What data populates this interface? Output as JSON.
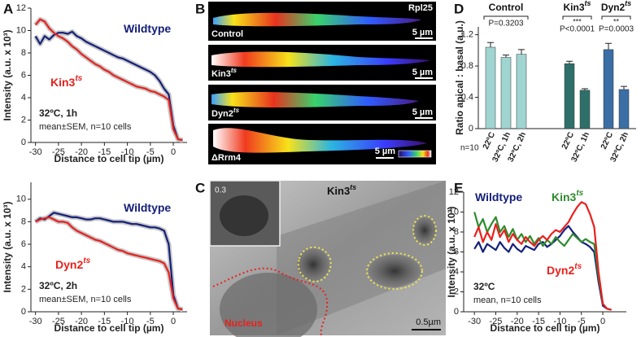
{
  "panel_letters": [
    "A",
    "B",
    "C",
    "D",
    "E"
  ],
  "micrograph_B": {
    "title": "Rpl25",
    "images": [
      {
        "label": "Control",
        "scale_bar": "5 µm"
      },
      {
        "label": "Kin3",
        "label_sup": "ts",
        "scale_bar": "5 µm"
      },
      {
        "label": "Dyn2",
        "label_sup": "ts",
        "scale_bar": "5 µm"
      },
      {
        "label": "ΔRrm4",
        "scale_bar": "5 µm"
      }
    ]
  },
  "micrograph_C": {
    "title": "Kin3",
    "title_sup": "ts",
    "inset_label": "0.3",
    "region_label": "Nucleus",
    "scale_bar": "0.5µm"
  },
  "chart_data": [
    {
      "type": "line",
      "x_label": "Distance to cell tip (µm)",
      "y_label": "Intensity (a.u. x 10³)",
      "annotations": [
        "32ºC, 1h",
        "mean±SEM, n=10 cells"
      ],
      "sem_band": true,
      "xlim": [
        -31,
        3
      ],
      "ylim": [
        0,
        12
      ],
      "xticks": [
        -30,
        -25,
        -20,
        -15,
        -10,
        -5,
        0
      ],
      "yticks": [
        0,
        2,
        4,
        6,
        8,
        10,
        12
      ],
      "x": [
        -30,
        -29,
        -28,
        -27,
        -26,
        -25,
        -24,
        -23,
        -22,
        -21,
        -20,
        -19,
        -18,
        -17,
        -16,
        -15,
        -14,
        -13,
        -12,
        -11,
        -10,
        -9,
        -8,
        -7,
        -6,
        -5,
        -4,
        -3,
        -2,
        -1,
        0,
        1,
        2
      ],
      "series": [
        {
          "name": "Wildtype",
          "color": "#14207a",
          "values": [
            9.5,
            8.8,
            9.5,
            9.2,
            9.6,
            9.8,
            9.8,
            9.7,
            9.9,
            9.5,
            9.3,
            9.0,
            8.8,
            8.6,
            8.4,
            8.2,
            8.0,
            7.8,
            7.6,
            7.5,
            7.3,
            7.1,
            6.9,
            6.7,
            6.5,
            6.3,
            6.0,
            5.5,
            4.8,
            4.3,
            1.5,
            0.3,
            0.2
          ]
        },
        {
          "name": "Kin3",
          "name_sup": "ts",
          "color": "#e8211d",
          "values": [
            10.5,
            11.0,
            10.8,
            10.2,
            9.8,
            9.5,
            9.3,
            9.0,
            8.6,
            8.3,
            7.9,
            7.6,
            7.3,
            7.0,
            6.8,
            6.5,
            6.3,
            6.0,
            5.8,
            5.6,
            5.4,
            5.2,
            5.0,
            4.9,
            4.8,
            4.6,
            4.5,
            4.3,
            4.1,
            3.8,
            1.2,
            0.3,
            0.2
          ]
        }
      ]
    },
    {
      "type": "line",
      "x_label": "Distance to cell tip (µm)",
      "y_label": "Intensity (a.u. x 10³)",
      "annotations": [
        "32ºC, 2h",
        "mean±SEM, n=10 cells"
      ],
      "sem_band": true,
      "xlim": [
        -31,
        3
      ],
      "ylim": [
        0,
        11.5
      ],
      "xticks": [
        -30,
        -25,
        -20,
        -15,
        -10,
        -5,
        0
      ],
      "yticks": [
        0,
        2,
        4,
        6,
        8,
        10
      ],
      "x": [
        -30,
        -29,
        -28,
        -27,
        -26,
        -25,
        -24,
        -23,
        -22,
        -21,
        -20,
        -19,
        -18,
        -17,
        -16,
        -15,
        -14,
        -13,
        -12,
        -11,
        -10,
        -9,
        -8,
        -7,
        -6,
        -5,
        -4,
        -3,
        -2,
        -1,
        0,
        1,
        2
      ],
      "series": [
        {
          "name": "Wildtype",
          "color": "#14207a",
          "values": [
            8.0,
            8.3,
            8.2,
            8.5,
            8.8,
            8.7,
            8.6,
            8.5,
            8.4,
            8.4,
            8.3,
            8.2,
            8.2,
            8.3,
            8.3,
            8.2,
            8.1,
            8.0,
            8.0,
            8.0,
            7.9,
            7.8,
            7.8,
            7.7,
            7.6,
            7.5,
            7.5,
            7.4,
            7.2,
            6.0,
            1.5,
            0.3,
            0.2
          ]
        },
        {
          "name": "Dyn2",
          "name_sup": "ts",
          "color": "#e8211d",
          "values": [
            8.0,
            8.2,
            8.3,
            8.4,
            8.2,
            8.0,
            8.0,
            7.9,
            7.5,
            7.2,
            7.0,
            6.8,
            6.6,
            6.4,
            6.3,
            6.1,
            5.9,
            5.7,
            5.5,
            5.4,
            5.2,
            5.1,
            5.0,
            4.9,
            4.8,
            4.7,
            4.6,
            4.5,
            4.3,
            3.5,
            1.2,
            0.3,
            0.2
          ]
        }
      ]
    },
    {
      "type": "grouped-bar",
      "y_label": "Ratio apical : basal (a.u.)",
      "sample_size": "n=10",
      "ylim": [
        0,
        1.3
      ],
      "yticks": [
        0,
        0.4,
        0.8,
        1.2
      ],
      "groups": [
        {
          "name": "Control",
          "color": "#9fd4d1",
          "categories": [
            "22ºC",
            "32ºC, 1h",
            "32ºC, 2h"
          ],
          "values": [
            1.04,
            0.91,
            0.95
          ],
          "errors": [
            0.06,
            0.03,
            0.06
          ],
          "p_value": "P=0.3203"
        },
        {
          "name": "Kin3",
          "name_sup": "ts",
          "color": "#2f6f6a",
          "categories": [
            "22ºC",
            "32ºC, 1h"
          ],
          "values": [
            0.83,
            0.49
          ],
          "errors": [
            0.03,
            0.02
          ],
          "significance": "***",
          "p_value": "P<0.0001"
        },
        {
          "name": "Dyn2",
          "name_sup": "ts",
          "color": "#3a6ea5",
          "categories": [
            "22ºC",
            "32ºC, 2h"
          ],
          "values": [
            1.01,
            0.5
          ],
          "errors": [
            0.08,
            0.04
          ],
          "significance": "**",
          "p_value": "P=0.0003"
        }
      ]
    },
    {
      "type": "line",
      "x_label": "Distance to cell tip (µm)",
      "y_label": "Intensity (a.u. x 10³)",
      "annotations": [
        "32ºC",
        "mean, n=10 cells"
      ],
      "sem_band": false,
      "xlim": [
        -32.5,
        5.5
      ],
      "ylim": [
        0,
        12
      ],
      "xticks": [
        -30,
        -25,
        -20,
        -15,
        -10,
        -5,
        0
      ],
      "yticks": [
        0,
        2,
        4,
        6,
        8,
        10,
        12
      ],
      "x": [
        -30,
        -29,
        -28,
        -27,
        -26,
        -25,
        -24,
        -23,
        -22,
        -21,
        -20,
        -19,
        -18,
        -17,
        -16,
        -15,
        -14,
        -13,
        -12,
        -11,
        -10,
        -9,
        -8,
        -7,
        -6,
        -5,
        -4,
        -3,
        -2,
        -1,
        0,
        1,
        2
      ],
      "series": [
        {
          "name": "Wildtype",
          "color": "#14207a",
          "values": [
            6.3,
            7.0,
            6.0,
            6.8,
            6.5,
            6.2,
            7.0,
            6.4,
            6.0,
            6.8,
            6.3,
            6.0,
            6.6,
            6.4,
            6.2,
            6.8,
            7.0,
            6.5,
            6.8,
            7.2,
            7.6,
            8.2,
            8.6,
            8.0,
            7.5,
            7.0,
            6.8,
            6.5,
            6.0,
            3.0,
            0.6,
            0.3,
            0.2
          ]
        },
        {
          "name": "Kin3",
          "name_sup": "ts",
          "color": "#2e8b2e",
          "values": [
            10.0,
            8.5,
            9.3,
            8.0,
            8.8,
            9.5,
            8.0,
            8.6,
            7.5,
            8.3,
            7.2,
            7.8,
            7.0,
            7.6,
            6.8,
            7.4,
            6.6,
            7.2,
            6.8,
            7.5,
            7.0,
            6.6,
            7.2,
            7.8,
            7.4,
            7.0,
            7.3,
            7.0,
            6.8,
            3.5,
            0.8,
            0.3,
            0.2
          ]
        },
        {
          "name": "Dyn2",
          "name_sup": "ts",
          "color": "#e8211d",
          "values": [
            7.5,
            8.5,
            7.0,
            8.0,
            7.2,
            8.8,
            7.5,
            8.2,
            7.0,
            7.8,
            7.2,
            6.8,
            7.5,
            7.0,
            6.6,
            7.2,
            7.6,
            7.2,
            7.8,
            8.2,
            8.0,
            8.5,
            9.0,
            9.8,
            10.5,
            11.0,
            10.8,
            9.8,
            8.5,
            4.0,
            0.8,
            0.3,
            0.2
          ]
        }
      ]
    }
  ]
}
